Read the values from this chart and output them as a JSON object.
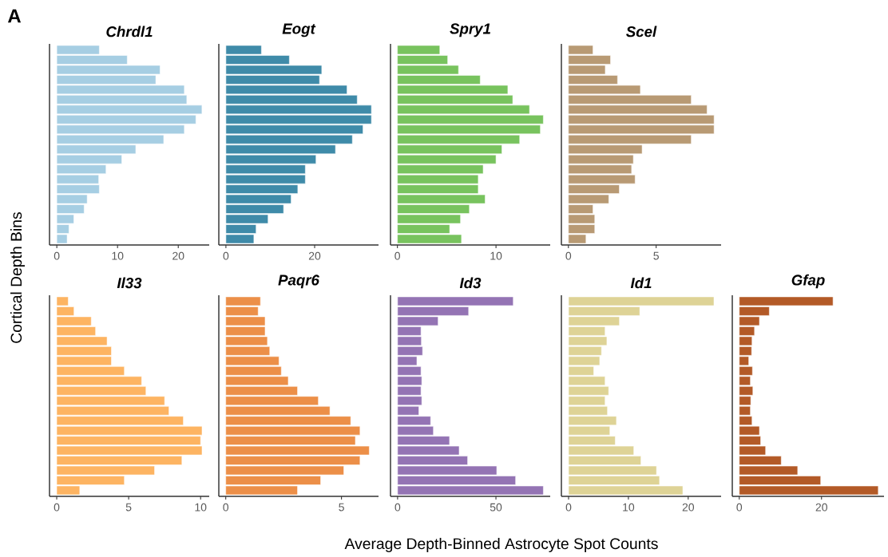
{
  "chart_data": [
    {
      "type": "bar",
      "orientation": "horizontal",
      "title": "Chrdl1",
      "ylabel": "Cortical Depth Bins",
      "annotations": [
        "A"
      ],
      "categories": [
        null,
        null,
        null,
        null,
        null,
        null,
        null,
        null,
        null,
        null,
        null,
        null,
        null,
        null,
        null,
        null,
        null,
        null,
        null,
        null
      ],
      "values": [
        7.0,
        11.6,
        17.0,
        16.3,
        21.0,
        21.4,
        23.9,
        22.9,
        21.0,
        17.6,
        13.0,
        10.7,
        8.1,
        6.9,
        7.0,
        5.0,
        4.5,
        2.8,
        2.0,
        1.7
      ],
      "color": "#a6cee3",
      "xlim": [
        -1.2,
        25.1
      ],
      "xticks": [
        0,
        10,
        20
      ],
      "tick_labels": "x"
    },
    {
      "type": "bar",
      "orientation": "horizontal",
      "title": "Eogt",
      "categories": [
        null,
        null,
        null,
        null,
        null,
        null,
        null,
        null,
        null,
        null,
        null,
        null,
        null,
        null,
        null,
        null,
        null,
        null,
        null,
        null
      ],
      "values": [
        8.0,
        14.3,
        21.6,
        21.1,
        27.3,
        29.6,
        32.8,
        32.8,
        30.9,
        28.5,
        24.7,
        20.3,
        17.9,
        17.9,
        16.2,
        14.7,
        13.0,
        9.5,
        6.8,
        6.3
      ],
      "color": "#3f8ba9",
      "xlim": [
        -1.6,
        34.4
      ],
      "xticks": [
        0,
        20
      ],
      "tick_labels": "x"
    },
    {
      "type": "bar",
      "orientation": "horizontal",
      "title": "Spry1",
      "categories": [
        null,
        null,
        null,
        null,
        null,
        null,
        null,
        null,
        null,
        null,
        null,
        null,
        null,
        null,
        null,
        null,
        null,
        null,
        null,
        null
      ],
      "values": [
        4.3,
        5.1,
        6.2,
        8.4,
        11.2,
        11.7,
        13.4,
        14.8,
        14.5,
        12.4,
        10.6,
        10.0,
        8.7,
        8.2,
        8.2,
        8.9,
        7.3,
        6.4,
        5.3,
        6.5
      ],
      "color": "#78c35e",
      "xlim": [
        -0.7,
        15.5
      ],
      "xticks": [
        0,
        10
      ],
      "tick_labels": "x"
    },
    {
      "type": "bar",
      "orientation": "horizontal",
      "title": "Scel",
      "categories": [
        null,
        null,
        null,
        null,
        null,
        null,
        null,
        null,
        null,
        null,
        null,
        null,
        null,
        null,
        null,
        null,
        null,
        null,
        null,
        null
      ],
      "values": [
        1.4,
        2.4,
        2.1,
        2.8,
        4.1,
        7.0,
        7.9,
        8.3,
        8.3,
        7.0,
        4.2,
        3.7,
        3.6,
        3.8,
        2.9,
        2.3,
        1.4,
        1.5,
        1.5,
        1.0
      ],
      "color": "#b89a74",
      "xlim": [
        -0.4,
        8.7
      ],
      "xticks": [
        0,
        5
      ],
      "tick_labels": "x"
    },
    {
      "type": "bar",
      "orientation": "horizontal",
      "title": "Il33",
      "categories": [
        null,
        null,
        null,
        null,
        null,
        null,
        null,
        null,
        null,
        null,
        null,
        null,
        null,
        null,
        null,
        null,
        null,
        null,
        null,
        null
      ],
      "values": [
        0.8,
        1.2,
        2.4,
        2.7,
        3.5,
        3.8,
        3.8,
        4.7,
        5.9,
        6.2,
        7.5,
        7.8,
        8.8,
        10.1,
        10.0,
        10.1,
        8.7,
        6.8,
        4.7,
        1.6
      ],
      "color": "#fdb462",
      "xlim": [
        -0.5,
        10.6
      ],
      "xticks": [
        0,
        5,
        10
      ],
      "tick_labels": "x"
    },
    {
      "type": "bar",
      "orientation": "horizontal",
      "title": "Paqr6",
      "categories": [
        null,
        null,
        null,
        null,
        null,
        null,
        null,
        null,
        null,
        null,
        null,
        null,
        null,
        null,
        null,
        null,
        null,
        null,
        null,
        null
      ],
      "values": [
        1.5,
        1.4,
        1.7,
        1.7,
        1.8,
        1.9,
        2.3,
        2.4,
        2.7,
        3.1,
        4.0,
        4.5,
        5.4,
        5.8,
        5.6,
        6.2,
        5.8,
        5.1,
        4.1,
        3.1
      ],
      "color": "#ec8f48",
      "xlim": [
        -0.3,
        6.6
      ],
      "xticks": [
        0,
        5
      ],
      "tick_labels": "x"
    },
    {
      "type": "bar",
      "orientation": "horizontal",
      "title": "Id3",
      "xlabel": "Average Depth-Binned Astrocyte Spot Counts",
      "categories": [
        null,
        null,
        null,
        null,
        null,
        null,
        null,
        null,
        null,
        null,
        null,
        null,
        null,
        null,
        null,
        null,
        null,
        null,
        null,
        null
      ],
      "values": [
        58.8,
        36.1,
        20.6,
        11.9,
        12.1,
        12.7,
        9.8,
        11.9,
        12.3,
        11.9,
        12.3,
        10.8,
        16.8,
        18.2,
        26.4,
        31.3,
        35.6,
        50.4,
        60.0,
        74.1
      ],
      "color": "#9474b4",
      "xlim": [
        -3.6,
        77.6
      ],
      "xticks": [
        0,
        50
      ],
      "tick_labels": "x"
    },
    {
      "type": "bar",
      "orientation": "horizontal",
      "title": "Id1",
      "categories": [
        null,
        null,
        null,
        null,
        null,
        null,
        null,
        null,
        null,
        null,
        null,
        null,
        null,
        null,
        null,
        null,
        null,
        null,
        null,
        null
      ],
      "values": [
        24.3,
        11.9,
        8.5,
        6.1,
        6.4,
        5.5,
        5.2,
        4.2,
        6.1,
        6.7,
        6.1,
        6.5,
        8.0,
        6.9,
        7.8,
        10.9,
        12.1,
        14.7,
        15.2,
        19.1
      ],
      "color": "#ded396",
      "xlim": [
        -1.2,
        25.5
      ],
      "xticks": [
        0,
        10,
        20
      ],
      "tick_labels": "x"
    },
    {
      "type": "bar",
      "orientation": "horizontal",
      "title": "Gfap",
      "categories": [
        null,
        null,
        null,
        null,
        null,
        null,
        null,
        null,
        null,
        null,
        null,
        null,
        null,
        null,
        null,
        null,
        null,
        null,
        null,
        null
      ],
      "values": [
        22.8,
        7.3,
        4.9,
        3.7,
        3.1,
        3.0,
        2.3,
        3.2,
        2.7,
        3.3,
        2.8,
        2.7,
        3.1,
        4.9,
        5.2,
        6.4,
        10.2,
        14.2,
        19.8,
        33.8
      ],
      "color": "#b35a27",
      "xlim": [
        -1.7,
        35.2
      ],
      "xticks": [
        0,
        20
      ],
      "tick_labels": "x"
    }
  ]
}
